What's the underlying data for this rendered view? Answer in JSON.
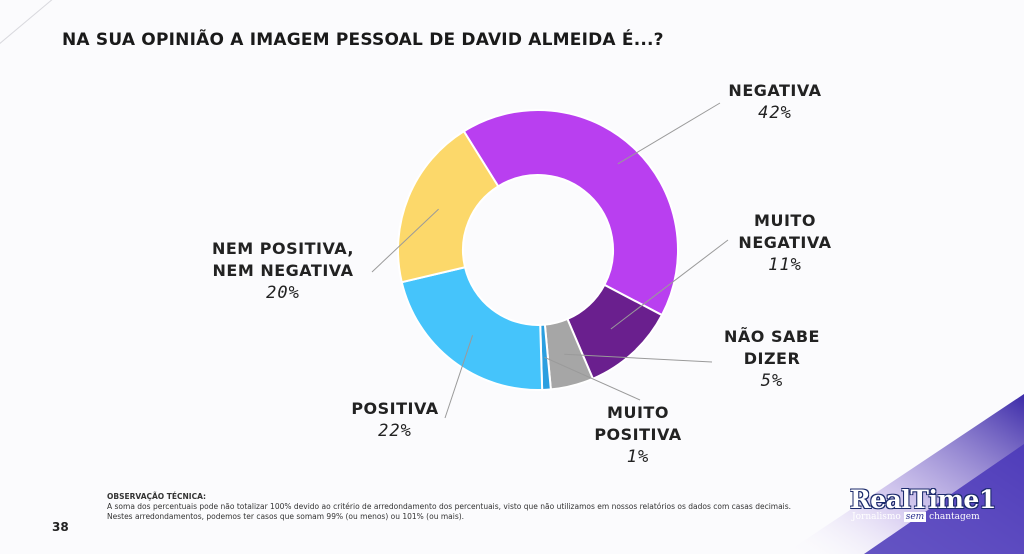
{
  "title": "NA SUA OPINIÃO A IMAGEM PESSOAL DE DAVID ALMEIDA É...?",
  "chart_data": {
    "type": "pie",
    "title": "NA SUA OPINIÃO A IMAGEM PESSOAL DE DAVID ALMEIDA É...?",
    "slices": [
      {
        "label": "NEGATIVA",
        "value": 42,
        "display": "42%",
        "color": "#b93ff0"
      },
      {
        "label": "MUITO NEGATIVA",
        "value": 11,
        "display": "11%",
        "color": "#6a1f8e"
      },
      {
        "label": "NÃO SABE DIZER",
        "value": 5,
        "display": "5%",
        "color": "#a6a6a6"
      },
      {
        "label": "MUITO POSITIVA",
        "value": 1,
        "display": "1%",
        "color": "#2b9fe0"
      },
      {
        "label": "POSITIVA",
        "value": 22,
        "display": "22%",
        "color": "#45c4fb"
      },
      {
        "label": "NEM POSITIVA, NEM NEGATIVA",
        "value": 20,
        "display": "20%",
        "color": "#fcd86a"
      }
    ]
  },
  "labels": {
    "negativa": {
      "line1": "NEGATIVA",
      "pct": "42%"
    },
    "muito_negativa": {
      "line1": "MUITO",
      "line2": "NEGATIVA",
      "pct": "11%"
    },
    "nao_sabe": {
      "line1": "NÃO SABE",
      "line2": "DIZER",
      "pct": "5%"
    },
    "muito_positiva": {
      "line1": "MUITO",
      "line2": "POSITIVA",
      "pct": "1%"
    },
    "positiva": {
      "line1": "POSITIVA",
      "pct": "22%"
    },
    "nem": {
      "line1": "NEM POSITIVA,",
      "line2": "NEM NEGATIVA",
      "pct": "20%"
    }
  },
  "note": {
    "heading": "OBSERVAÇÃO TÉCNICA:",
    "line1": "A soma dos percentuais pode não totalizar 100% devido ao critério de arredondamento dos percentuais, visto que não utilizamos em nossos relatórios os dados com casas decimais.",
    "line2": "Nestes arredondamentos, podemos ter casos que somam 99% (ou menos) ou 101% (ou mais)."
  },
  "page_number": "38",
  "logo": {
    "main": "RealTime1",
    "sub_before": "Jornalismo",
    "sub_sem": "sem",
    "sub_after": "chantagem"
  }
}
